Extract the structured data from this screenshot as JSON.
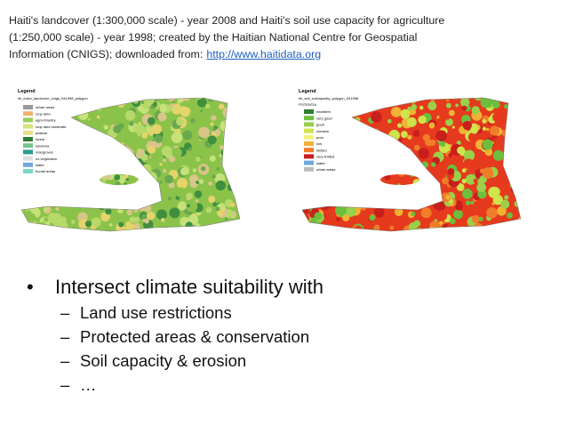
{
  "header": {
    "lines": [
      "Haiti's landcover (1:300,000 scale) - year 2008 and Haiti's soil use capacity for agriculture",
      "(1:250,000 scale) - year 1998; created by the Haitian National Centre for Geospatial",
      "Information (CNIGS); downloaded from:"
    ],
    "link": "http://www.haitidata.org"
  },
  "maps": [
    {
      "legend_title": "Legend",
      "layer": "hti_lndcv_landcover_cnigs_041998_polygon",
      "items": [
        "urban areas",
        "crop land",
        "agro-forestry",
        "crop land moderate",
        "pasture",
        "forest",
        "savanna",
        "mangroves",
        "no vegetation",
        "water",
        "humid areas"
      ]
    },
    {
      "legend_title": "Legend",
      "layer": "hti_soil_soilcapacity_polygon_041998",
      "heading": "POTENTIA",
      "items": [
        "excellent",
        "very good",
        "good",
        "medium",
        "poor",
        "low",
        "limited",
        "very limited",
        "water",
        "urban areas"
      ]
    }
  ],
  "bullets": {
    "marker": "•",
    "main": "Intersect climate suitability with",
    "sub_marker": "–",
    "sub": [
      "Land use restrictions",
      "Protected areas & conservation",
      "Soil capacity & erosion",
      "…"
    ]
  }
}
